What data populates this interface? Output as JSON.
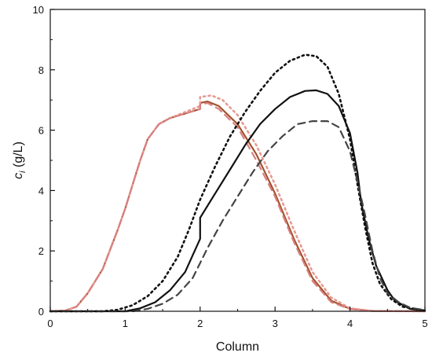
{
  "chart_data": {
    "type": "line",
    "xlabel": "Column",
    "ylabel_main": "c",
    "ylabel_sub": "i",
    "ylabel_unit": " (g/L)",
    "xlim": [
      0,
      5
    ],
    "ylim": [
      0,
      10
    ],
    "xticks": [
      "0",
      "1",
      "2",
      "3",
      "4",
      "5"
    ],
    "yticks": [
      "0",
      "2",
      "4",
      "6",
      "8",
      "10"
    ],
    "grid": false,
    "legend": "none",
    "series": [
      {
        "color": "#A0522D",
        "style": "solid",
        "points": [
          [
            0,
            0
          ],
          [
            0.2,
            0.02
          ],
          [
            0.35,
            0.15
          ],
          [
            0.5,
            0.6
          ],
          [
            0.7,
            1.4
          ],
          [
            0.9,
            2.7
          ],
          [
            1.0,
            3.4
          ],
          [
            1.1,
            4.2
          ],
          [
            1.2,
            5.0
          ],
          [
            1.3,
            5.7
          ],
          [
            1.45,
            6.2
          ],
          [
            1.6,
            6.4
          ],
          [
            1.8,
            6.55
          ],
          [
            2.0,
            6.7
          ],
          [
            2.0,
            6.9
          ],
          [
            2.1,
            6.95
          ],
          [
            2.25,
            6.8
          ],
          [
            2.5,
            6.2
          ],
          [
            2.75,
            5.2
          ],
          [
            3.0,
            3.9
          ],
          [
            3.25,
            2.4
          ],
          [
            3.5,
            1.1
          ],
          [
            3.75,
            0.35
          ],
          [
            4.0,
            0.08
          ],
          [
            4.3,
            0.01
          ],
          [
            5.0,
            0
          ]
        ]
      },
      {
        "color": "#E79A92",
        "style": "dotted",
        "points": [
          [
            0,
            0
          ],
          [
            0.2,
            0.02
          ],
          [
            0.35,
            0.15
          ],
          [
            0.5,
            0.6
          ],
          [
            0.7,
            1.4
          ],
          [
            0.9,
            2.7
          ],
          [
            1.0,
            3.4
          ],
          [
            1.1,
            4.2
          ],
          [
            1.2,
            5.0
          ],
          [
            1.3,
            5.7
          ],
          [
            1.45,
            6.2
          ],
          [
            1.6,
            6.4
          ],
          [
            1.8,
            6.6
          ],
          [
            2.0,
            6.8
          ],
          [
            2.0,
            7.1
          ],
          [
            2.15,
            7.15
          ],
          [
            2.3,
            7.0
          ],
          [
            2.5,
            6.5
          ],
          [
            2.75,
            5.5
          ],
          [
            3.0,
            4.2
          ],
          [
            3.25,
            2.7
          ],
          [
            3.5,
            1.3
          ],
          [
            3.75,
            0.45
          ],
          [
            4.0,
            0.1
          ],
          [
            4.3,
            0.01
          ],
          [
            5.0,
            0
          ]
        ]
      },
      {
        "color": "#D98080",
        "style": "dashed",
        "points": [
          [
            0,
            0
          ],
          [
            0.2,
            0.02
          ],
          [
            0.35,
            0.15
          ],
          [
            0.5,
            0.6
          ],
          [
            0.7,
            1.4
          ],
          [
            0.9,
            2.7
          ],
          [
            1.0,
            3.4
          ],
          [
            1.1,
            4.2
          ],
          [
            1.2,
            5.0
          ],
          [
            1.3,
            5.7
          ],
          [
            1.45,
            6.2
          ],
          [
            1.6,
            6.4
          ],
          [
            1.8,
            6.55
          ],
          [
            2.0,
            6.7
          ],
          [
            2.0,
            6.85
          ],
          [
            2.1,
            6.9
          ],
          [
            2.25,
            6.7
          ],
          [
            2.5,
            6.1
          ],
          [
            2.75,
            5.0
          ],
          [
            3.0,
            3.8
          ],
          [
            3.25,
            2.3
          ],
          [
            3.5,
            1.0
          ],
          [
            3.75,
            0.3
          ],
          [
            4.0,
            0.07
          ],
          [
            4.3,
            0.01
          ],
          [
            5.0,
            0
          ]
        ]
      },
      {
        "color": "#111111",
        "style": "solid",
        "points": [
          [
            0,
            0
          ],
          [
            1.0,
            0
          ],
          [
            1.2,
            0.1
          ],
          [
            1.4,
            0.3
          ],
          [
            1.6,
            0.7
          ],
          [
            1.8,
            1.3
          ],
          [
            2.0,
            2.4
          ],
          [
            2.0,
            3.1
          ],
          [
            2.2,
            3.9
          ],
          [
            2.4,
            4.7
          ],
          [
            2.6,
            5.5
          ],
          [
            2.8,
            6.2
          ],
          [
            3.0,
            6.7
          ],
          [
            3.2,
            7.1
          ],
          [
            3.4,
            7.3
          ],
          [
            3.55,
            7.32
          ],
          [
            3.7,
            7.2
          ],
          [
            3.85,
            6.8
          ],
          [
            4.0,
            5.9
          ],
          [
            4.1,
            4.6
          ],
          [
            4.15,
            3.6
          ],
          [
            4.25,
            2.4
          ],
          [
            4.35,
            1.5
          ],
          [
            4.5,
            0.7
          ],
          [
            4.6,
            0.35
          ],
          [
            4.8,
            0.08
          ],
          [
            5.0,
            0.02
          ]
        ]
      },
      {
        "color": "#111111",
        "style": "dotted",
        "points": [
          [
            0,
            0
          ],
          [
            0.7,
            0
          ],
          [
            0.9,
            0.05
          ],
          [
            1.1,
            0.2
          ],
          [
            1.3,
            0.5
          ],
          [
            1.5,
            1.0
          ],
          [
            1.7,
            1.8
          ],
          [
            1.85,
            2.7
          ],
          [
            2.0,
            3.7
          ],
          [
            2.2,
            4.8
          ],
          [
            2.4,
            5.8
          ],
          [
            2.6,
            6.6
          ],
          [
            2.8,
            7.3
          ],
          [
            3.0,
            7.9
          ],
          [
            3.2,
            8.3
          ],
          [
            3.4,
            8.5
          ],
          [
            3.55,
            8.45
          ],
          [
            3.7,
            8.1
          ],
          [
            3.85,
            7.2
          ],
          [
            4.0,
            5.7
          ],
          [
            4.1,
            4.2
          ],
          [
            4.2,
            2.8
          ],
          [
            4.3,
            1.6
          ],
          [
            4.4,
            0.9
          ],
          [
            4.55,
            0.4
          ],
          [
            4.7,
            0.15
          ],
          [
            5.0,
            0.02
          ]
        ]
      },
      {
        "color": "#444444",
        "style": "dashed",
        "points": [
          [
            0,
            0
          ],
          [
            1.1,
            0
          ],
          [
            1.3,
            0.08
          ],
          [
            1.5,
            0.25
          ],
          [
            1.7,
            0.55
          ],
          [
            1.9,
            1.1
          ],
          [
            2.0,
            1.6
          ],
          [
            2.1,
            2.1
          ],
          [
            2.3,
            3.0
          ],
          [
            2.5,
            3.8
          ],
          [
            2.7,
            4.6
          ],
          [
            2.9,
            5.3
          ],
          [
            3.1,
            5.8
          ],
          [
            3.3,
            6.2
          ],
          [
            3.5,
            6.3
          ],
          [
            3.7,
            6.3
          ],
          [
            3.85,
            6.1
          ],
          [
            4.0,
            5.3
          ],
          [
            4.1,
            4.3
          ],
          [
            4.2,
            3.2
          ],
          [
            4.3,
            2.0
          ],
          [
            4.4,
            1.1
          ],
          [
            4.5,
            0.6
          ],
          [
            4.65,
            0.3
          ],
          [
            4.8,
            0.12
          ],
          [
            5.0,
            0.04
          ]
        ]
      }
    ]
  }
}
